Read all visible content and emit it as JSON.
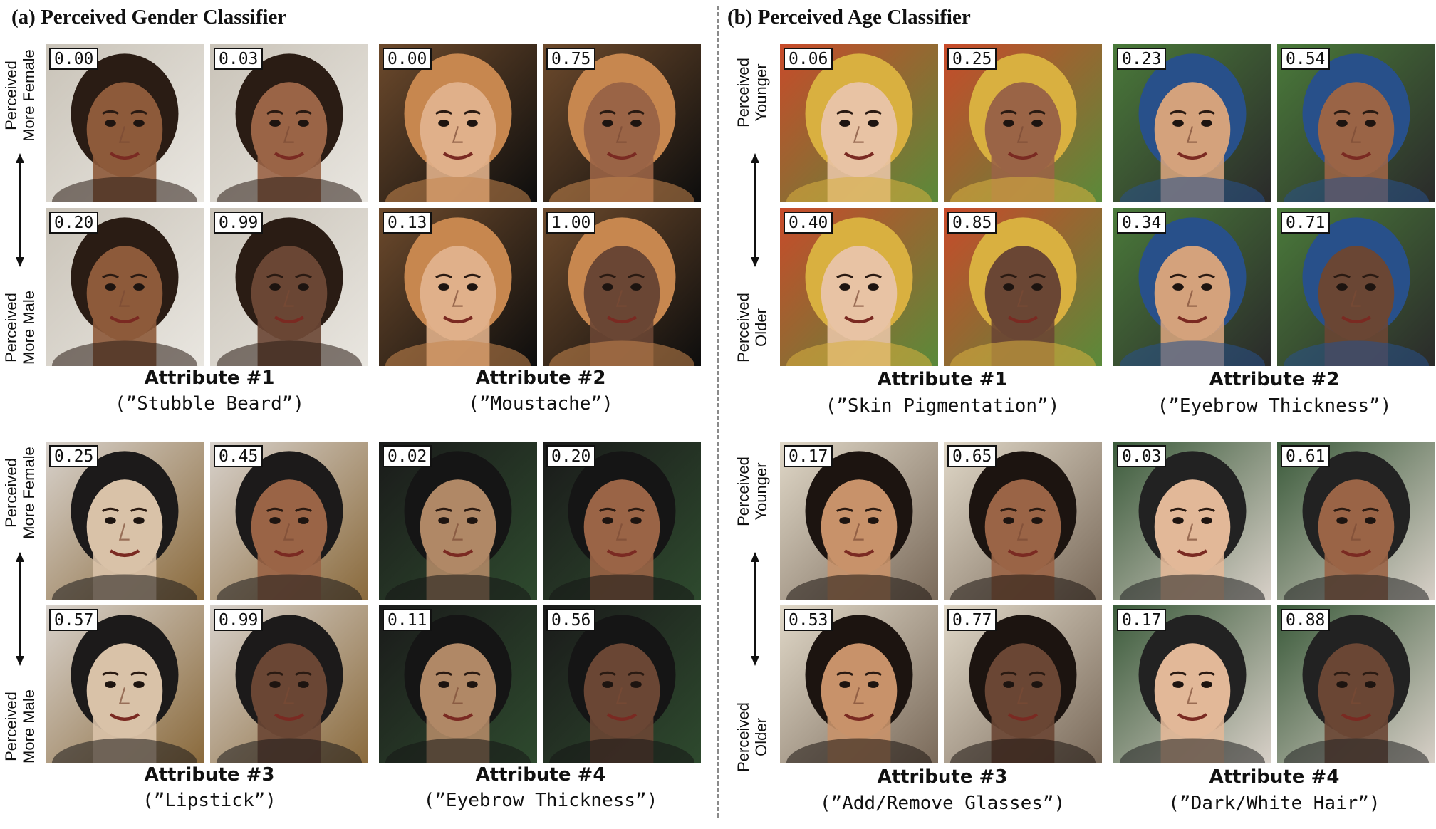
{
  "panels": {
    "gender": {
      "title": "(a) Perceived Gender Classifier",
      "top_label": [
        "Perceived",
        "More Female"
      ],
      "bottom_label": [
        "Perceived",
        "More Male"
      ]
    },
    "age": {
      "title": "(b) Perceived Age Classifier",
      "top_label": [
        "Perceived",
        "Younger"
      ],
      "bottom_label": [
        "Perceived",
        "Older"
      ]
    }
  },
  "attributes": {
    "g1": {
      "name": "Attribute #1",
      "desc": "(”Stubble Beard”)"
    },
    "g2": {
      "name": "Attribute #2",
      "desc": "(”Moustache”)"
    },
    "g3": {
      "name": "Attribute #3",
      "desc": "(”Lipstick”)"
    },
    "g4": {
      "name": "Attribute #4",
      "desc": "(”Eyebrow Thickness”)"
    },
    "a1": {
      "name": "Attribute #1",
      "desc": "(”Skin Pigmentation”)"
    },
    "a2": {
      "name": "Attribute #2",
      "desc": "(”Eyebrow Thickness”)"
    },
    "a3": {
      "name": "Attribute #3",
      "desc": "(”Add/Remove Glasses”)"
    },
    "a4": {
      "name": "Attribute #4",
      "desc": "(”Dark/White Hair”)"
    }
  },
  "scores": {
    "g1": [
      "0.00",
      "0.03",
      "0.20",
      "0.99"
    ],
    "g2": [
      "0.00",
      "0.75",
      "0.13",
      "1.00"
    ],
    "g3": [
      "0.25",
      "0.45",
      "0.57",
      "0.99"
    ],
    "g4": [
      "0.02",
      "0.20",
      "0.11",
      "0.56"
    ],
    "a1": [
      "0.06",
      "0.25",
      "0.40",
      "0.85"
    ],
    "a2": [
      "0.23",
      "0.54",
      "0.34",
      "0.71"
    ],
    "a3": [
      "0.17",
      "0.65",
      "0.53",
      "0.77"
    ],
    "a4": [
      "0.03",
      "0.61",
      "0.17",
      "0.88"
    ]
  },
  "colors": {
    "highlight": "#a51e22"
  }
}
